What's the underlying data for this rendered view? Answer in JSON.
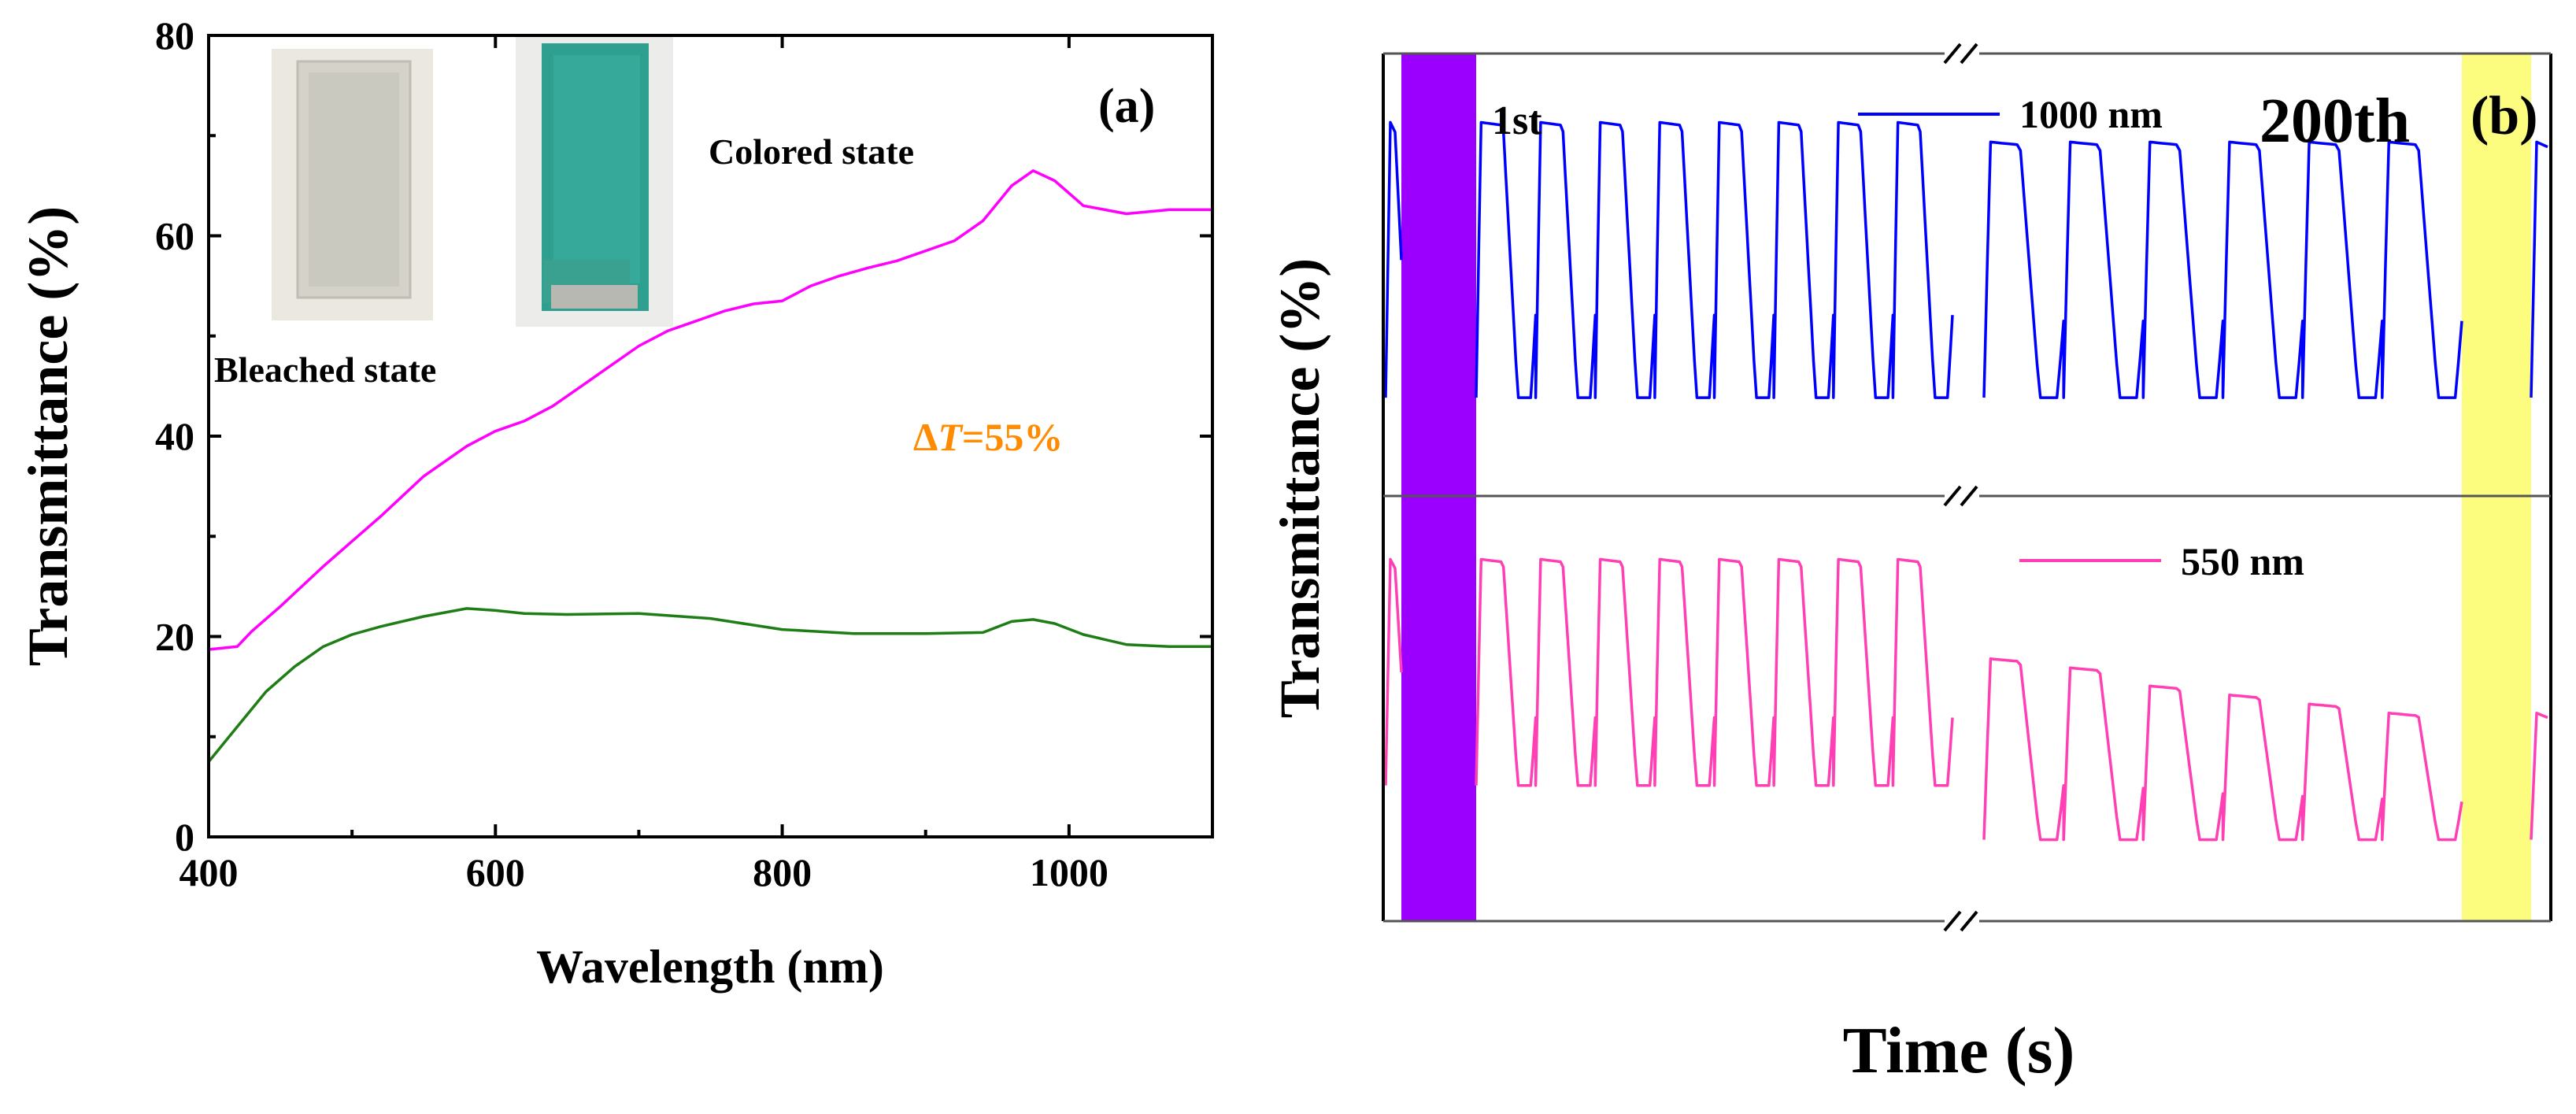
{
  "colors": {
    "colored": "#ff00ff",
    "bleached": "#1e7d14",
    "delta": "#ff8c00",
    "blue": "#0000ff",
    "pink": "#ff3fb4",
    "purple_band": "#9b00ff",
    "yellow_band": "#fcfc7e",
    "label_1st": "#e99cff",
    "label_200th": "#0a9a14"
  },
  "chart_data": [
    {
      "type": "line",
      "panel": "(a)",
      "xlabel": "Wavelength (nm)",
      "ylabel": "Transmittance (%)",
      "xlim": [
        400,
        1100
      ],
      "ylim": [
        0,
        80
      ],
      "xticks": [
        400,
        600,
        800,
        1000
      ],
      "yticks": [
        0,
        20,
        40,
        60,
        80
      ],
      "annotations": {
        "colored_state": "Colored state",
        "bleached_state": "Bleached state",
        "delta_symbol": "Δ",
        "delta_var": "T",
        "delta_value": "=55%"
      },
      "series": [
        {
          "name": "Colored state",
          "color": "#ff00ff",
          "x": [
            400,
            420,
            430,
            450,
            480,
            500,
            520,
            550,
            580,
            600,
            620,
            640,
            660,
            680,
            700,
            720,
            740,
            760,
            780,
            800,
            820,
            840,
            860,
            880,
            900,
            920,
            940,
            960,
            975,
            990,
            1010,
            1040,
            1070,
            1100
          ],
          "y": [
            18.7,
            19.0,
            20.5,
            23.0,
            27.0,
            29.5,
            32.0,
            36.0,
            39.0,
            40.5,
            41.5,
            43.0,
            45.0,
            47.0,
            49.0,
            50.5,
            51.5,
            52.5,
            53.2,
            53.5,
            55.0,
            56.0,
            56.8,
            57.5,
            58.5,
            59.5,
            61.5,
            65.0,
            66.5,
            65.5,
            63.0,
            62.2,
            62.6,
            62.6
          ]
        },
        {
          "name": "Bleached state",
          "color": "#1e7d14",
          "x": [
            400,
            420,
            440,
            460,
            480,
            500,
            520,
            550,
            580,
            600,
            620,
            650,
            700,
            750,
            800,
            850,
            900,
            940,
            960,
            975,
            990,
            1010,
            1040,
            1070,
            1100
          ],
          "y": [
            7.5,
            11.0,
            14.5,
            17.0,
            19.0,
            20.2,
            21.0,
            22.0,
            22.8,
            22.6,
            22.3,
            22.2,
            22.3,
            21.8,
            20.7,
            20.3,
            20.3,
            20.4,
            21.5,
            21.7,
            21.3,
            20.2,
            19.2,
            19.0,
            19.0
          ]
        }
      ]
    },
    {
      "type": "line",
      "panel": "(b)",
      "xlabel": "Time (s)",
      "ylabel": "Transmittance (%)",
      "break_markers": "//",
      "cycle_labels": [
        "1st",
        "200th"
      ],
      "series": [
        {
          "name": "1000 nm",
          "color": "#0000ff",
          "subpanel": "top",
          "cycles_before_break": 8,
          "cycles_after_break": 6,
          "cycle_peaks_first": [
            68,
            68,
            68,
            68,
            68,
            68,
            68,
            68
          ],
          "cycle_peaks_last": [
            66,
            66,
            66,
            66,
            66,
            66
          ],
          "cycle_minima_first": [
            40,
            40,
            40,
            40,
            40,
            40,
            40,
            40
          ],
          "cycle_minima_last": [
            40,
            40,
            40,
            40,
            40,
            40
          ]
        },
        {
          "name": "550 nm",
          "color": "#ff3fb4",
          "subpanel": "bottom",
          "cycles_before_break": 8,
          "cycles_after_break": 6,
          "cycle_peaks_first": [
            28,
            28,
            28,
            28,
            28,
            28,
            28,
            28
          ],
          "cycle_peaks_last": [
            17,
            16,
            14,
            13,
            12,
            11
          ],
          "cycle_minima_first": [
            3,
            3,
            3,
            3,
            3,
            3,
            3,
            3
          ],
          "cycle_minima_last": [
            -3,
            -3,
            -3,
            -3,
            -3,
            -3
          ]
        }
      ]
    }
  ]
}
